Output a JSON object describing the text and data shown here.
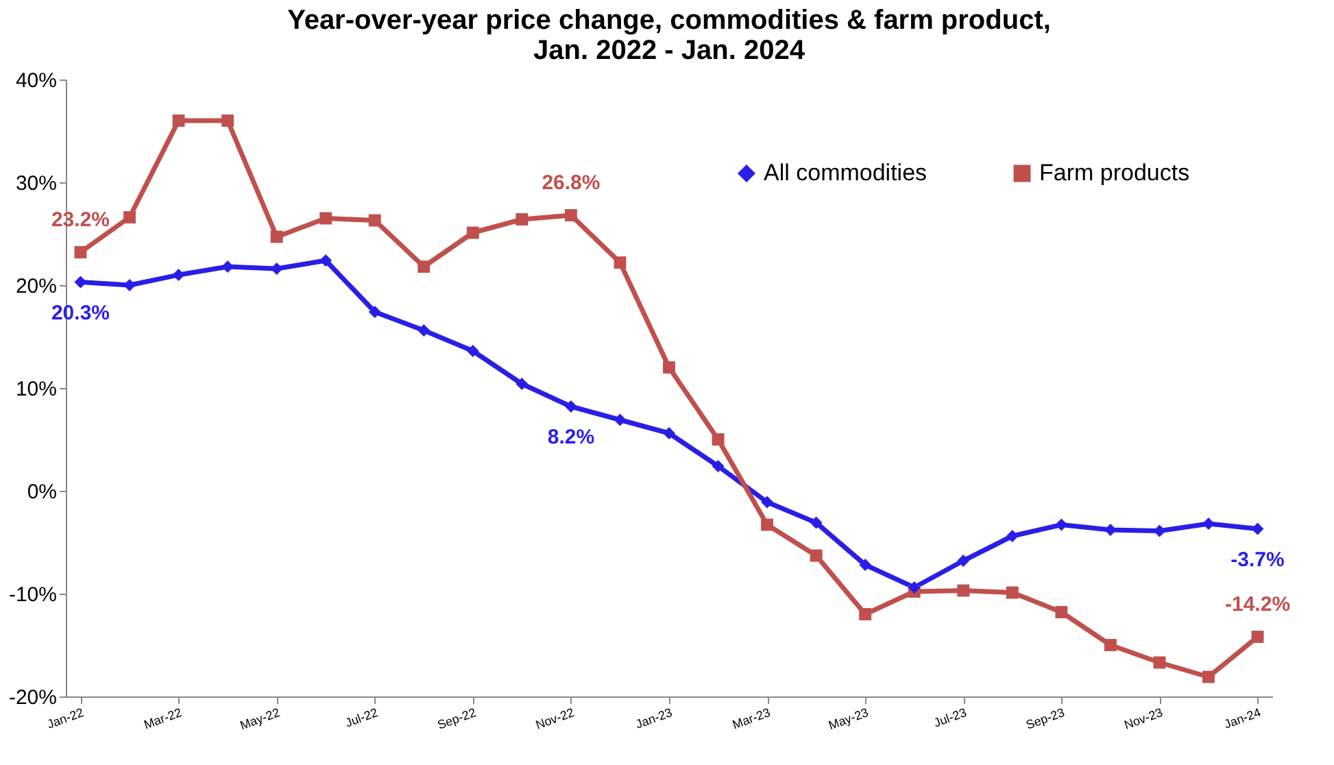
{
  "chart_data": {
    "type": "line",
    "title": [
      "Year-over-year price change, commodities & farm product,",
      "Jan. 2022  - Jan. 2024"
    ],
    "categories": [
      "Jan-22",
      null,
      "Mar-22",
      null,
      "May-22",
      null,
      "Jul-22",
      null,
      "Sep-22",
      null,
      "Nov-22",
      null,
      "Jan-23",
      null,
      "Mar-23",
      null,
      "May-23",
      null,
      "Jul-23",
      null,
      "Sep-23",
      null,
      "Nov-23",
      null,
      "Jan-24"
    ],
    "series": [
      {
        "name": "All commodities",
        "color": "#2a1ee6",
        "marker": "diamond",
        "values": [
          20.3,
          20.0,
          21.0,
          21.8,
          21.6,
          22.4,
          17.4,
          15.6,
          13.6,
          10.4,
          8.2,
          6.9,
          5.6,
          2.4,
          -1.1,
          -3.1,
          -7.2,
          -9.4,
          -6.8,
          -4.4,
          -3.3,
          -3.8,
          -3.9,
          -3.2,
          -3.7
        ],
        "value_labels": [
          "20.3%",
          null,
          null,
          null,
          null,
          null,
          null,
          null,
          null,
          null,
          "8.2%",
          null,
          null,
          null,
          null,
          null,
          null,
          null,
          null,
          null,
          null,
          null,
          null,
          null,
          "-3.7%"
        ]
      },
      {
        "name": "Farm products",
        "color": "#c0504d",
        "marker": "square",
        "values": [
          23.2,
          26.6,
          36.0,
          36.0,
          24.7,
          26.5,
          26.3,
          21.8,
          25.1,
          26.4,
          26.8,
          22.2,
          12.0,
          5.0,
          -3.3,
          -6.3,
          -12.0,
          -9.8,
          -9.7,
          -9.9,
          -11.8,
          -15.0,
          -16.7,
          -18.1,
          -14.2
        ],
        "value_labels": [
          "23.2%",
          null,
          null,
          null,
          null,
          null,
          null,
          null,
          null,
          null,
          "26.8%",
          null,
          null,
          null,
          null,
          null,
          null,
          null,
          null,
          null,
          null,
          null,
          null,
          null,
          "-14.2%"
        ]
      }
    ],
    "ylim": [
      -20,
      40
    ],
    "yticks": [
      {
        "value": -20,
        "label": "-20%"
      },
      {
        "value": -10,
        "label": "-10%"
      },
      {
        "value": 0,
        "label": "0%"
      },
      {
        "value": 10,
        "label": "10%"
      },
      {
        "value": 20,
        "label": "20%"
      },
      {
        "value": 30,
        "label": "30%"
      },
      {
        "value": 40,
        "label": "40%"
      }
    ],
    "grid": false,
    "legend": "top right",
    "line_style": "solid"
  }
}
